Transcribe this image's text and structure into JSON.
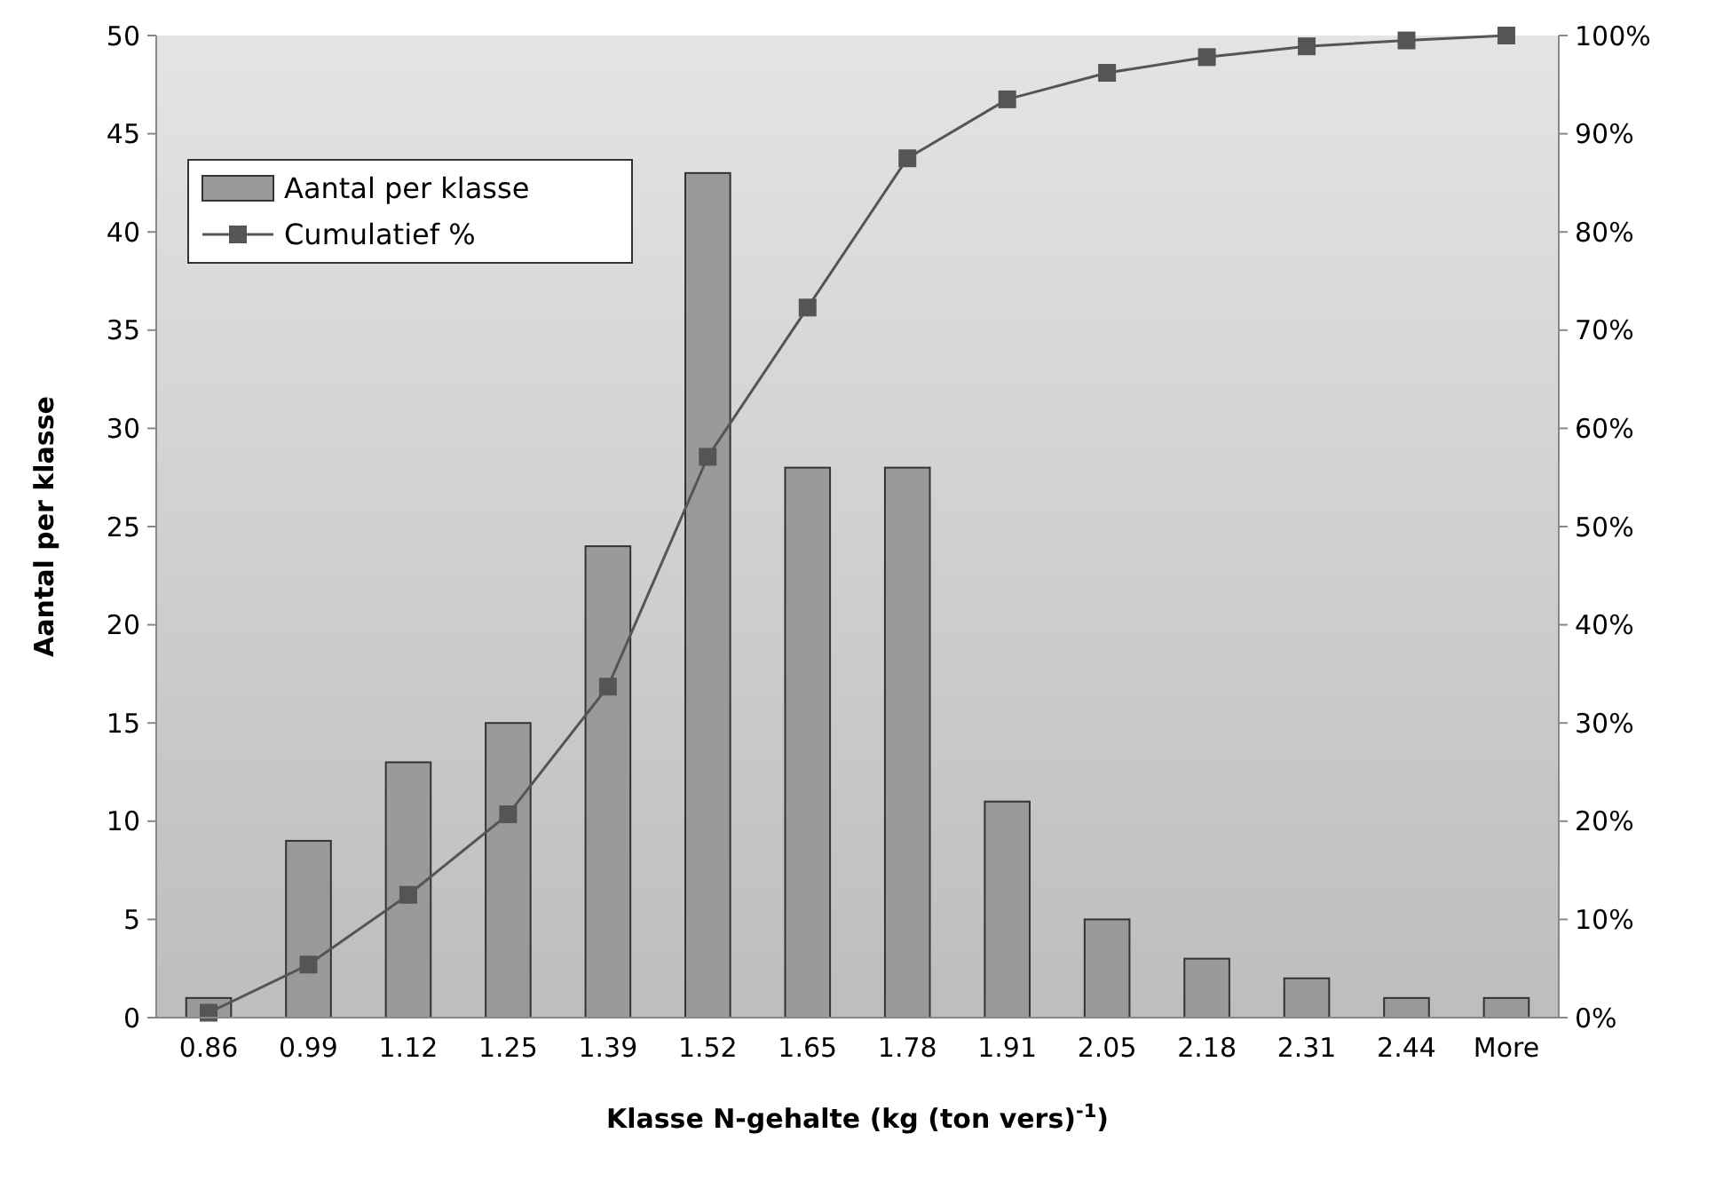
{
  "chart_data": {
    "type": "bar",
    "xlabel": "Klasse N-gehalte (kg (ton vers)$^{-1}$)",
    "ylabel": "Aantal per klasse",
    "categories": [
      "0.86",
      "0.99",
      "1.12",
      "1.25",
      "1.39",
      "1.52",
      "1.65",
      "1.78",
      "1.91",
      "2.05",
      "2.18",
      "2.31",
      "2.44",
      "More"
    ],
    "series": [
      {
        "name": "Aantal per klasse",
        "color": "#9a9a9a",
        "values": [
          1,
          9,
          13,
          15,
          24,
          43,
          28,
          28,
          11,
          5,
          3,
          2,
          1,
          1
        ]
      },
      {
        "name": "Cumulatief %",
        "type": "line",
        "axis": "y2",
        "color": "#555555",
        "marker": "square",
        "values": [
          0.5,
          5.4,
          12.5,
          20.7,
          33.7,
          57.1,
          72.3,
          87.5,
          93.5,
          96.2,
          97.8,
          98.9,
          99.5,
          100
        ]
      }
    ],
    "ylim": [
      0,
      50
    ],
    "yticks": [
      0,
      5,
      10,
      15,
      20,
      25,
      30,
      35,
      40,
      45,
      50
    ],
    "y2lim": [
      0,
      100
    ],
    "y2ticks": [
      {
        "value": 0,
        "label": "0%"
      },
      {
        "value": 10,
        "label": "10%"
      },
      {
        "value": 20,
        "label": "20%"
      },
      {
        "value": 30,
        "label": "30%"
      },
      {
        "value": 40,
        "label": "40%"
      },
      {
        "value": 50,
        "label": "50%"
      },
      {
        "value": 60,
        "label": "60%"
      },
      {
        "value": 70,
        "label": "70%"
      },
      {
        "value": 80,
        "label": "80%"
      },
      {
        "value": 90,
        "label": "90%"
      },
      {
        "value": 100,
        "label": "100%"
      }
    ],
    "legend": "top left"
  }
}
